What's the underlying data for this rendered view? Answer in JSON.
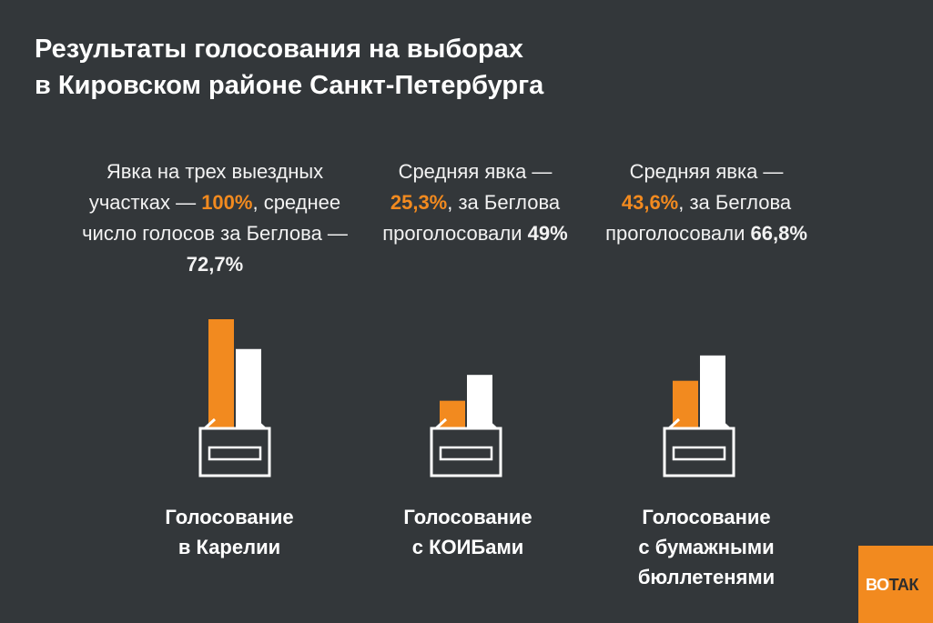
{
  "title": {
    "line1": "Результаты голосования на выборах",
    "line2": "в Кировском районе Санкт-Петербурга"
  },
  "columns": [
    {
      "text_a": "Явка на трех выездных участках — ",
      "turnout": "100%",
      "text_b": ", среднее число голосов за Беглова — ",
      "beglov": "72,7%",
      "label_1": "Голосование",
      "label_2": "в Карелии",
      "label_3": ""
    },
    {
      "text_a": "Средняя явка — ",
      "turnout": "25,3%",
      "text_b": ", за Беглова проголосовали ",
      "beglov": "49%",
      "label_1": "Голосование",
      "label_2": "с КОИБами",
      "label_3": ""
    },
    {
      "text_a": "Средняя явка — ",
      "turnout": "43,6%",
      "text_b": ", за Беглова проголосовали ",
      "beglov": "66,8%",
      "label_1": "Голосование",
      "label_2": "с бумажными",
      "label_3": "бюллетенями"
    }
  ],
  "chart_data": {
    "type": "bar",
    "categories": [
      "Голосование в Карелии",
      "Голосование с КОИБами",
      "Голосование с бумажными бюллетенями"
    ],
    "series": [
      {
        "values": [
          100,
          25.3,
          43.6
        ],
        "color": "#f28a1f"
      },
      {
        "values": [
          72.7,
          49,
          66.8
        ],
        "color": "#ffffff"
      }
    ],
    "ylim": [
      0,
      100
    ],
    "legend": "none",
    "grid": false
  },
  "logo": {
    "part1": "ВО",
    "part2": "ТАК"
  },
  "colors": {
    "background": "#33373a",
    "accent": "#f28a1f",
    "bar_secondary": "#ffffff"
  }
}
